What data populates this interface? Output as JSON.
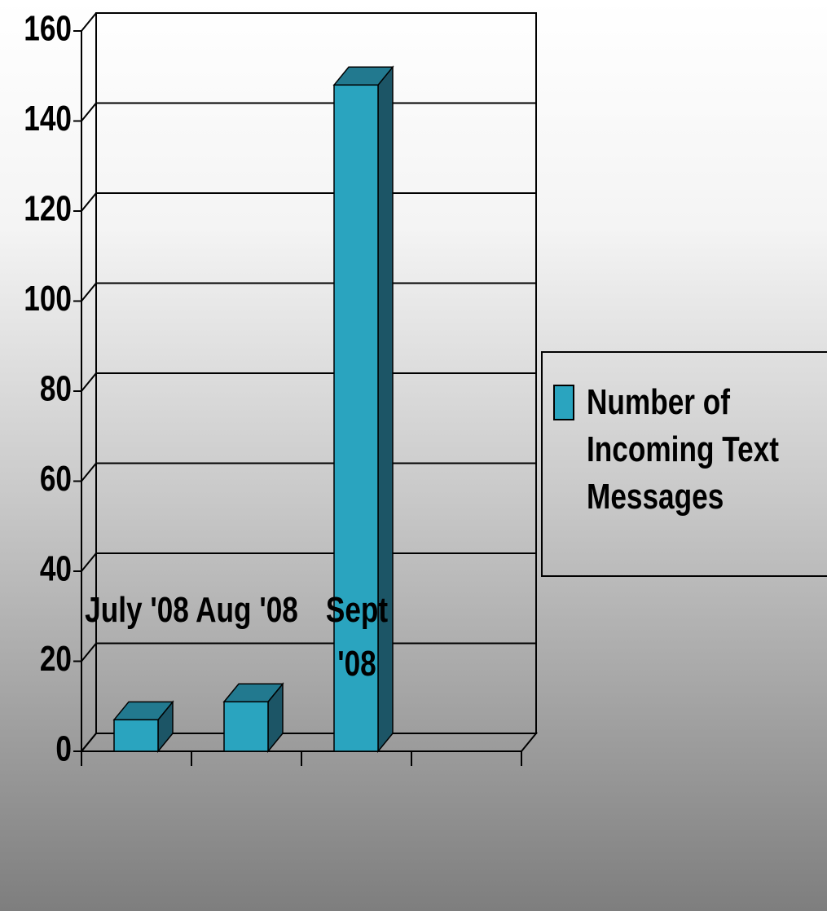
{
  "chart_data": {
    "type": "bar3d",
    "categories": [
      "July '08",
      "Aug '08",
      "Sept '08",
      null
    ],
    "series": [
      {
        "name": "Number of Incoming Text Messages",
        "color": "#2aa4bf",
        "values": [
          7,
          11,
          148,
          null
        ]
      }
    ],
    "ylim": [
      0,
      160
    ],
    "yticks": [
      0,
      20,
      40,
      60,
      80,
      100,
      120,
      140,
      160
    ],
    "grid": true,
    "legend": "right"
  }
}
